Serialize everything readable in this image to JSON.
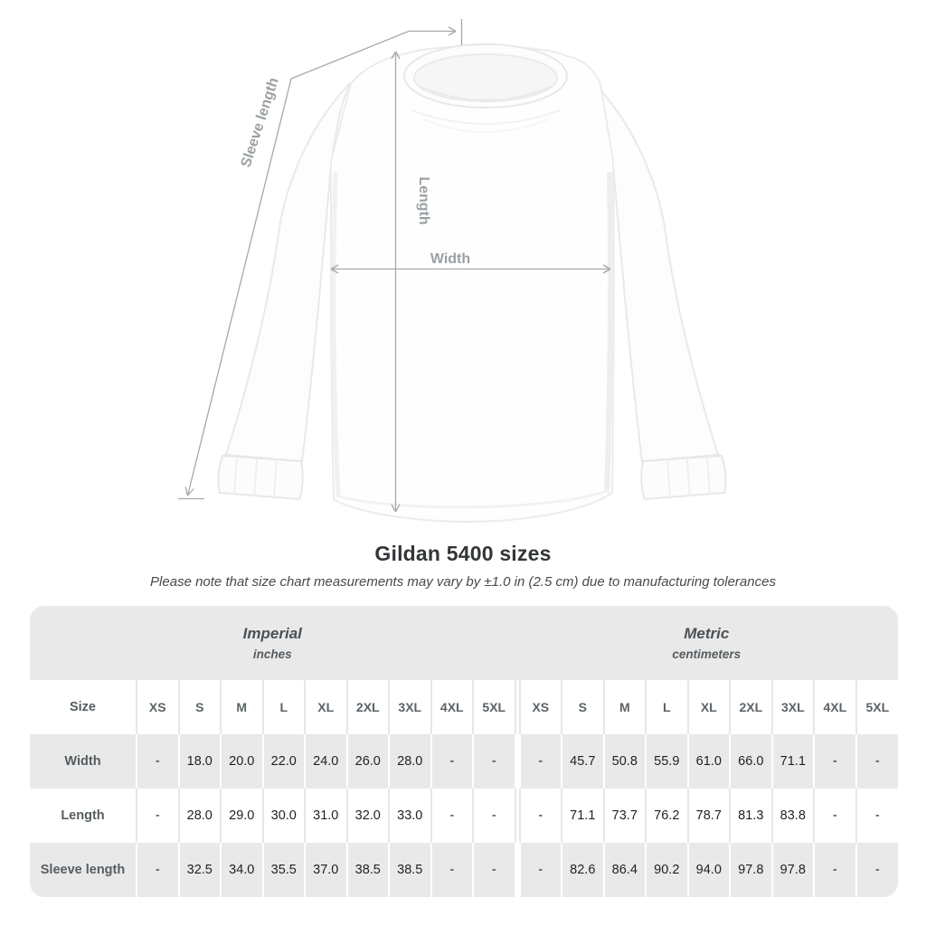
{
  "diagram": {
    "labels": {
      "sleeve_length": "Sleeve length",
      "length": "Length",
      "width": "Width"
    }
  },
  "heading": {
    "title": "Gildan 5400 sizes",
    "note": "Please note that size chart measurements may vary by ±1.0 in (2.5 cm) due to manufacturing tolerances"
  },
  "size_chart": {
    "groups": [
      {
        "label": "Imperial",
        "unit": "inches"
      },
      {
        "label": "Metric",
        "unit": "centimeters"
      }
    ],
    "size_header_label": "Size",
    "sizes": [
      "XS",
      "S",
      "M",
      "L",
      "XL",
      "2XL",
      "3XL",
      "4XL",
      "5XL"
    ],
    "rows": [
      {
        "label": "Width",
        "imperial": [
          "-",
          "18.0",
          "20.0",
          "22.0",
          "24.0",
          "26.0",
          "28.0",
          "-",
          "-"
        ],
        "metric": [
          "-",
          "45.7",
          "50.8",
          "55.9",
          "61.0",
          "66.0",
          "71.1",
          "-",
          "-"
        ]
      },
      {
        "label": "Length",
        "imperial": [
          "-",
          "28.0",
          "29.0",
          "30.0",
          "31.0",
          "32.0",
          "33.0",
          "-",
          "-"
        ],
        "metric": [
          "-",
          "71.1",
          "73.7",
          "76.2",
          "78.7",
          "81.3",
          "83.8",
          "-",
          "-"
        ]
      },
      {
        "label": "Sleeve length",
        "imperial": [
          "-",
          "32.5",
          "34.0",
          "35.5",
          "37.0",
          "38.5",
          "38.5",
          "-",
          "-"
        ],
        "metric": [
          "-",
          "82.6",
          "86.4",
          "90.2",
          "94.0",
          "97.8",
          "97.8",
          "-",
          "-"
        ]
      }
    ]
  },
  "chart_data": {
    "type": "table",
    "title": "Gildan 5400 sizes",
    "columns": [
      "Size",
      "XS",
      "S",
      "M",
      "L",
      "XL",
      "2XL",
      "3XL",
      "4XL",
      "5XL"
    ],
    "imperial_unit": "inches",
    "metric_unit": "centimeters",
    "rows": [
      {
        "measure": "Width",
        "imperial": [
          null,
          18.0,
          20.0,
          22.0,
          24.0,
          26.0,
          28.0,
          null,
          null
        ],
        "metric": [
          null,
          45.7,
          50.8,
          55.9,
          61.0,
          66.0,
          71.1,
          null,
          null
        ]
      },
      {
        "measure": "Length",
        "imperial": [
          null,
          28.0,
          29.0,
          30.0,
          31.0,
          32.0,
          33.0,
          null,
          null
        ],
        "metric": [
          null,
          71.1,
          73.7,
          76.2,
          78.7,
          81.3,
          83.8,
          null,
          null
        ]
      },
      {
        "measure": "Sleeve length",
        "imperial": [
          null,
          32.5,
          34.0,
          35.5,
          37.0,
          38.5,
          38.5,
          null,
          null
        ],
        "metric": [
          null,
          82.6,
          86.4,
          90.2,
          94.0,
          97.8,
          97.8,
          null,
          null
        ]
      }
    ]
  },
  "colors": {
    "annotation_line": "#a8a8a8",
    "annotation_text": "#9aa0a4",
    "band_background": "#e9e9e9",
    "title_text": "#333638",
    "value_text": "#1e2124"
  }
}
